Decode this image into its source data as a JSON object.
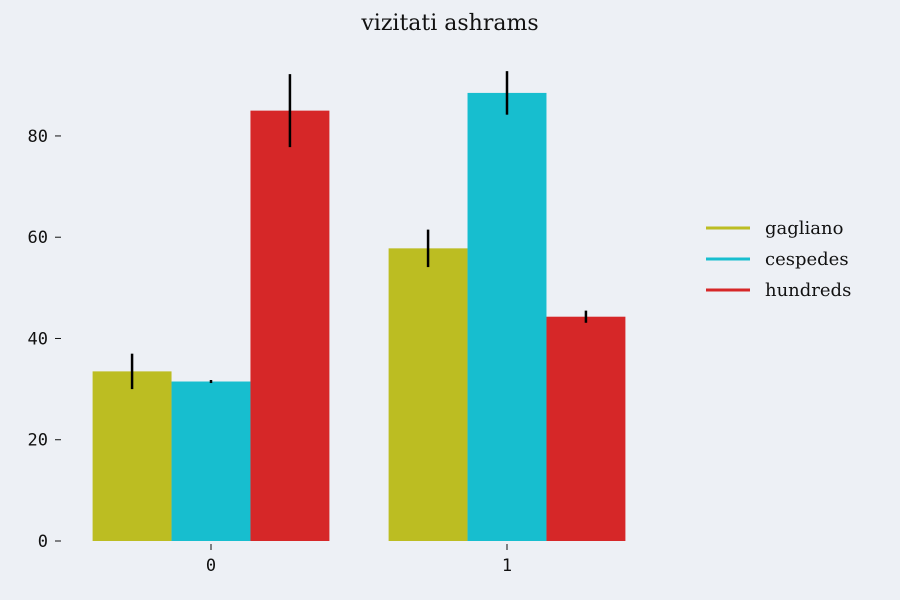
{
  "chart_data": {
    "type": "bar",
    "title": "vizitati ashrams",
    "xlabel": "",
    "ylabel": "",
    "categories": [
      "0",
      "1"
    ],
    "ylim": [
      0,
      95
    ],
    "yticks": [
      0,
      20,
      40,
      60,
      80
    ],
    "grid": false,
    "legend_position": "right",
    "series": [
      {
        "name": "gagliano",
        "color": "#bcbd22",
        "values": [
          33.5,
          57.8
        ],
        "errors": [
          3.5,
          3.7
        ]
      },
      {
        "name": "cespedes",
        "color": "#17becf",
        "values": [
          31.5,
          88.5
        ],
        "errors": [
          0.3,
          4.3
        ]
      },
      {
        "name": "hundreds",
        "color": "#d62728",
        "values": [
          85.0,
          44.3
        ],
        "errors": [
          7.2,
          1.2
        ]
      }
    ]
  }
}
